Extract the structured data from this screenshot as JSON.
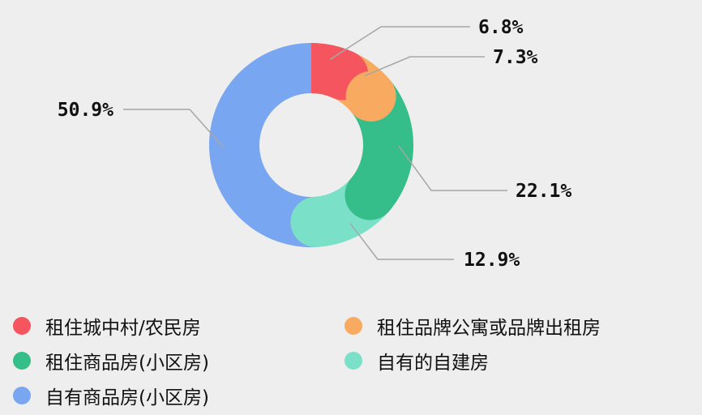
{
  "chart_data": {
    "type": "pie",
    "donut": true,
    "title": "",
    "slices": [
      {
        "label": "租住城中村/农民房",
        "value": 6.8,
        "value_label": "6.8%",
        "color": "#f4555f"
      },
      {
        "label": "租住品牌公寓或品牌出租房",
        "value": 7.3,
        "value_label": "7.3%",
        "color": "#f8aa60"
      },
      {
        "label": "租住商品房(小区房)",
        "value": 22.1,
        "value_label": "22.1%",
        "color": "#35bd8a"
      },
      {
        "label": "自有的自建房",
        "value": 12.9,
        "value_label": "12.9%",
        "color": "#7ae0c8"
      },
      {
        "label": "自有商品房(小区房)",
        "value": 50.9,
        "value_label": "50.9%",
        "color": "#78a6f0"
      }
    ],
    "legend_position": "bottom"
  },
  "legend_items": [
    {
      "label": "租住城中村/农民房",
      "color": "#f4555f"
    },
    {
      "label": "租住品牌公寓或品牌出租房",
      "color": "#f8aa60"
    },
    {
      "label": "租住商品房(小区房)",
      "color": "#35bd8a"
    },
    {
      "label": "自有的自建房",
      "color": "#7ae0c8"
    },
    {
      "label": "自有商品房(小区房)",
      "color": "#78a6f0"
    }
  ]
}
